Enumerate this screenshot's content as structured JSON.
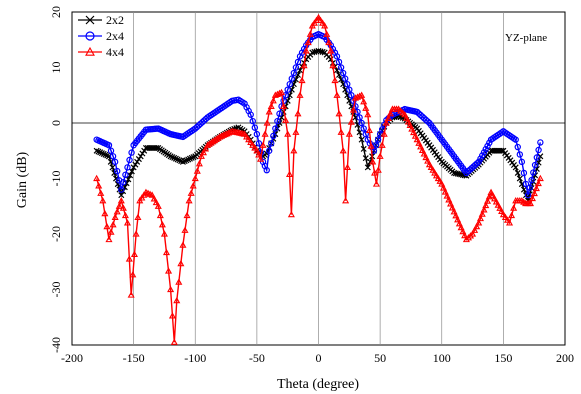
{
  "chart_data": {
    "type": "line",
    "title": "",
    "xlabel": "Theta (degree)",
    "ylabel": "Gain (dB)",
    "xlim": [
      -200,
      200
    ],
    "ylim": [
      -40,
      20
    ],
    "xticks": [
      -200,
      -150,
      -100,
      -50,
      0,
      50,
      100,
      150,
      200
    ],
    "yticks": [
      -40,
      -30,
      -20,
      -10,
      0,
      10,
      20
    ],
    "grid": "vertical-lines-only",
    "annotation": "YZ-plane",
    "legend_position": "top-left",
    "series": [
      {
        "name": "2x2",
        "color": "#000000",
        "marker": "x",
        "x": [
          -180,
          -170,
          -160,
          -150,
          -140,
          -130,
          -120,
          -110,
          -100,
          -90,
          -80,
          -70,
          -65,
          -60,
          -55,
          -50,
          -45,
          -42,
          -40,
          -35,
          -30,
          -25,
          -20,
          -15,
          -10,
          -5,
          0,
          5,
          10,
          15,
          20,
          25,
          30,
          35,
          40,
          42,
          45,
          50,
          55,
          60,
          65,
          70,
          80,
          90,
          100,
          110,
          120,
          130,
          140,
          150,
          160,
          165,
          170,
          180
        ],
        "y": [
          -5,
          -6,
          -13,
          -8,
          -4.5,
          -4.5,
          -6,
          -7,
          -6,
          -4,
          -2.5,
          -1.2,
          -0.8,
          -1.5,
          -3,
          -5,
          -6,
          -5.5,
          -4.5,
          -2,
          1,
          4,
          7,
          9.5,
          11.5,
          12.7,
          13,
          12.7,
          11.5,
          9.5,
          7,
          4,
          1,
          -3,
          -8,
          -7,
          -5,
          -2,
          0,
          1,
          1.2,
          0.8,
          -1,
          -4,
          -7,
          -9,
          -9.5,
          -7.5,
          -5,
          -5,
          -8,
          -11,
          -14,
          -6
        ]
      },
      {
        "name": "2x4",
        "color": "#0000ff",
        "marker": "o",
        "x": [
          -180,
          -170,
          -165,
          -160,
          -155,
          -150,
          -140,
          -130,
          -120,
          -110,
          -100,
          -90,
          -80,
          -70,
          -65,
          -60,
          -55,
          -50,
          -45,
          -42,
          -40,
          -35,
          -30,
          -25,
          -20,
          -15,
          -10,
          -5,
          0,
          5,
          10,
          15,
          20,
          25,
          30,
          35,
          40,
          45,
          50,
          55,
          60,
          65,
          70,
          80,
          90,
          100,
          110,
          120,
          130,
          140,
          150,
          160,
          165,
          170,
          180
        ],
        "y": [
          -3,
          -4,
          -7,
          -12,
          -8,
          -4,
          -1.2,
          -1,
          -2,
          -2.5,
          -1,
          1,
          2.5,
          4,
          4.2,
          3.5,
          1.5,
          -2,
          -7,
          -8.5,
          -5,
          -1,
          3,
          6,
          9,
          12,
          14,
          15.5,
          16,
          15.5,
          14,
          12,
          9,
          6,
          3,
          0,
          -3,
          -5,
          -2,
          0.5,
          1.5,
          2,
          2.5,
          2,
          0,
          -3,
          -6,
          -9,
          -7,
          -3,
          -1.5,
          -3,
          -7,
          -13,
          -3.5
        ]
      },
      {
        "name": "4x4",
        "color": "#ff0000",
        "marker": "triangle",
        "x": [
          -180,
          -175,
          -170,
          -165,
          -160,
          -155,
          -152,
          -148,
          -145,
          -140,
          -135,
          -130,
          -125,
          -120,
          -117,
          -115,
          -110,
          -105,
          -100,
          -95,
          -90,
          -80,
          -70,
          -60,
          -55,
          -50,
          -47,
          -45,
          -40,
          -35,
          -30,
          -25,
          -22,
          -20,
          -15,
          -10,
          -5,
          0,
          5,
          10,
          15,
          20,
          22,
          25,
          30,
          35,
          40,
          44,
          47,
          50,
          55,
          60,
          65,
          70,
          80,
          90,
          100,
          110,
          120,
          125,
          130,
          140,
          150,
          155,
          160,
          165,
          168,
          172,
          180
        ],
        "y": [
          -10,
          -14,
          -21,
          -17,
          -14,
          -18,
          -31,
          -20,
          -14,
          -12.5,
          -13,
          -15,
          -20,
          -30,
          -39.5,
          -32,
          -22,
          -14,
          -10,
          -6,
          -4,
          -2.5,
          -1.5,
          -2,
          -3.5,
          -5,
          -6.5,
          -4,
          2,
          5,
          5.5,
          -2,
          -16.5,
          -5,
          5,
          13,
          17.5,
          19,
          17.5,
          13,
          5,
          -5,
          -14,
          -2,
          4.5,
          5,
          1.5,
          -7,
          -11,
          -6,
          0,
          2.5,
          2.5,
          1.5,
          -3,
          -7.5,
          -11,
          -16,
          -21,
          -20,
          -18,
          -12.5,
          -16.5,
          -18,
          -14,
          -14,
          -14.5,
          -14.5,
          -10
        ]
      }
    ]
  }
}
